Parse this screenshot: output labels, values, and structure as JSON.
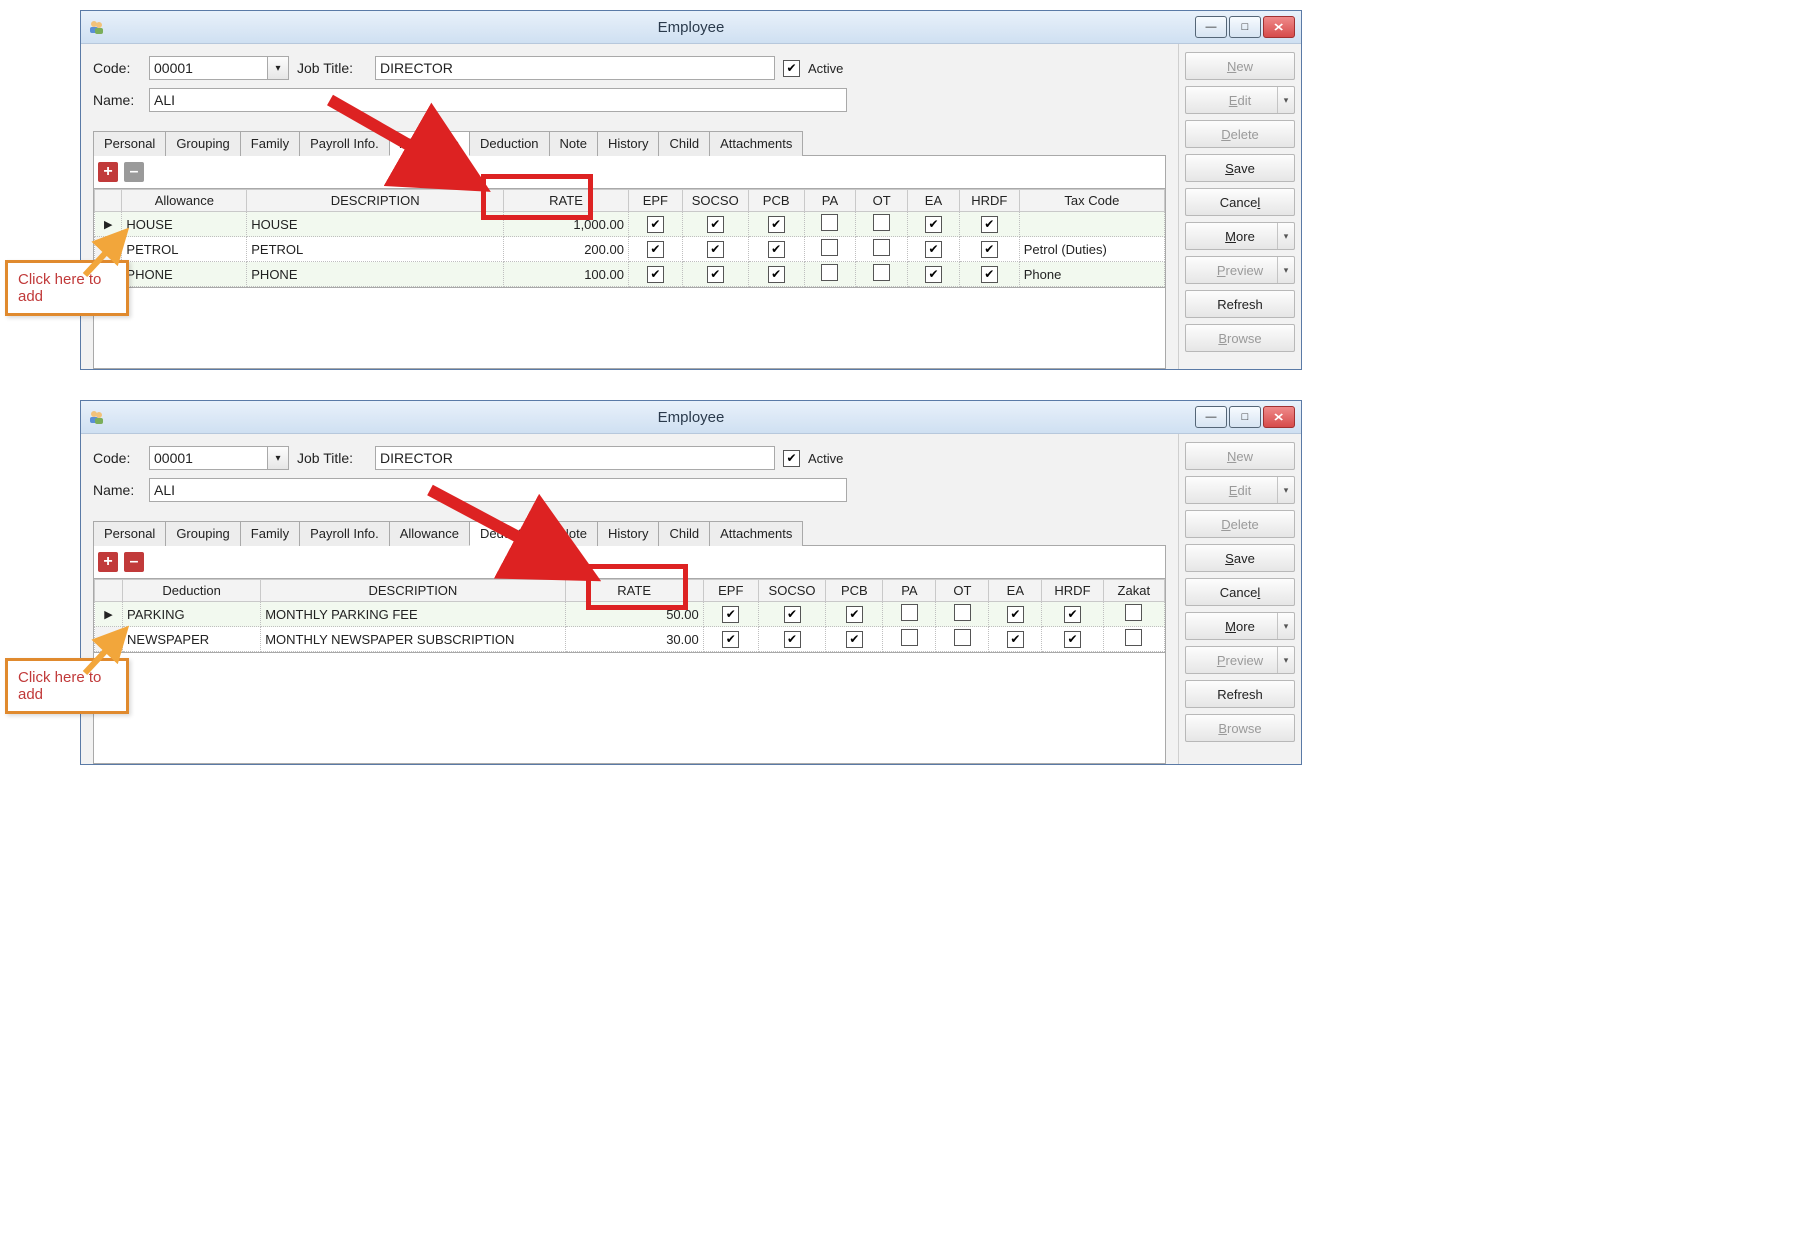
{
  "callout_text": "Click here to add",
  "window_title": "Employee",
  "header": {
    "code_label": "Code:",
    "code_value": "00001",
    "jobtitle_label": "Job Title:",
    "jobtitle_value": "DIRECTOR",
    "active_label": "Active",
    "active_checked": true,
    "name_label": "Name:",
    "name_value": "ALI"
  },
  "tabs": [
    "Personal",
    "Grouping",
    "Family",
    "Payroll Info.",
    "Allowance",
    "Deduction",
    "Note",
    "History",
    "Child",
    "Attachments"
  ],
  "sidebar": {
    "new": "New",
    "edit": "Edit",
    "delete": "Delete",
    "save": "Save",
    "cancel": "Cancel",
    "more": "More",
    "preview": "Preview",
    "refresh": "Refresh",
    "browse": "Browse"
  },
  "shot1": {
    "active_tab": "Allowance",
    "columns": [
      "Allowance",
      "DESCRIPTION",
      "RATE",
      "EPF",
      "SOCSO",
      "PCB",
      "PA",
      "OT",
      "EA",
      "HRDF",
      "Tax Code"
    ],
    "rows": [
      {
        "sel": "▶",
        "c0": "HOUSE",
        "c1": "HOUSE",
        "c2": "1,000.00",
        "ck": [
          true,
          true,
          true,
          false,
          false,
          true,
          true
        ],
        "tax": "",
        "alt": true
      },
      {
        "sel": "",
        "c0": "PETROL",
        "c1": "PETROL",
        "c2": "200.00",
        "ck": [
          true,
          true,
          true,
          false,
          false,
          true,
          true
        ],
        "tax": "Petrol (Duties)",
        "alt": false
      },
      {
        "sel": "",
        "c0": "PHONE",
        "c1": "PHONE",
        "c2": "100.00",
        "ck": [
          true,
          true,
          true,
          false,
          false,
          true,
          true
        ],
        "tax": "Phone",
        "alt": true
      }
    ]
  },
  "shot2": {
    "active_tab": "Deduction",
    "columns": [
      "Deduction",
      "DESCRIPTION",
      "RATE",
      "EPF",
      "SOCSO",
      "PCB",
      "PA",
      "OT",
      "EA",
      "HRDF",
      "Zakat"
    ],
    "rows": [
      {
        "sel": "▶",
        "c0": "PARKING",
        "c1": "MONTHLY PARKING FEE",
        "c2": "50.00",
        "ck": [
          true,
          true,
          true,
          false,
          false,
          true,
          true,
          false
        ],
        "alt": true
      },
      {
        "sel": "",
        "c0": "NEWSPAPER",
        "c1": "MONTHLY NEWSPAPER SUBSCRIPTION",
        "c2": "30.00",
        "ck": [
          true,
          true,
          true,
          false,
          false,
          true,
          true,
          false
        ],
        "alt": false
      }
    ]
  },
  "colors": {
    "highlight": "#d22",
    "callout_border": "#e08a2e",
    "callout_text": "#c13a3a"
  }
}
